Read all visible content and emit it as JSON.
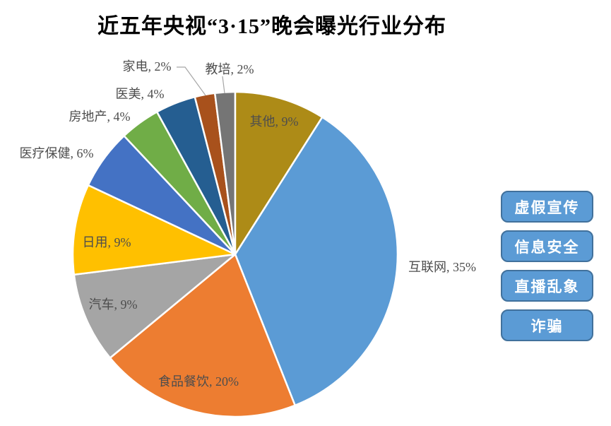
{
  "title": "近五年央视“3·15”晚会曝光行业分布",
  "chart_data": {
    "type": "pie",
    "title": "近五年央视“3·15”晚会曝光行业分布",
    "unit": "%",
    "slices": [
      {
        "label": "互联网",
        "value": 35,
        "color": "#5B9BD5"
      },
      {
        "label": "食品餐饮",
        "value": 20,
        "color": "#ED7D31"
      },
      {
        "label": "汽车",
        "value": 9,
        "color": "#A5A5A5"
      },
      {
        "label": "日用",
        "value": 9,
        "color": "#FFC000"
      },
      {
        "label": "医疗保健",
        "value": 6,
        "color": "#4472C4"
      },
      {
        "label": "房地产",
        "value": 4,
        "color": "#70AD47"
      },
      {
        "label": "医美",
        "value": 4,
        "color": "#255E91"
      },
      {
        "label": "家电",
        "value": 2,
        "color": "#A8511C"
      },
      {
        "label": "教培",
        "value": 2,
        "color": "#757575"
      },
      {
        "label": "其他",
        "value": 9,
        "color": "#AD8B17"
      }
    ],
    "start_angle_deg": 32.4,
    "direction": "clockwise",
    "labels_visible": true,
    "label_color": "#4D4D4D",
    "leader_line_color": "#A6A6A6",
    "legend_position": "none",
    "background": "#FFFFFF"
  },
  "badges": {
    "items": [
      {
        "label": "虚假宣传"
      },
      {
        "label": "信息安全"
      },
      {
        "label": "直播乱象"
      },
      {
        "label": "诈骗"
      }
    ],
    "fill": "#5B9BD5",
    "border": "#41719C",
    "text_color": "#FFFFFF"
  }
}
